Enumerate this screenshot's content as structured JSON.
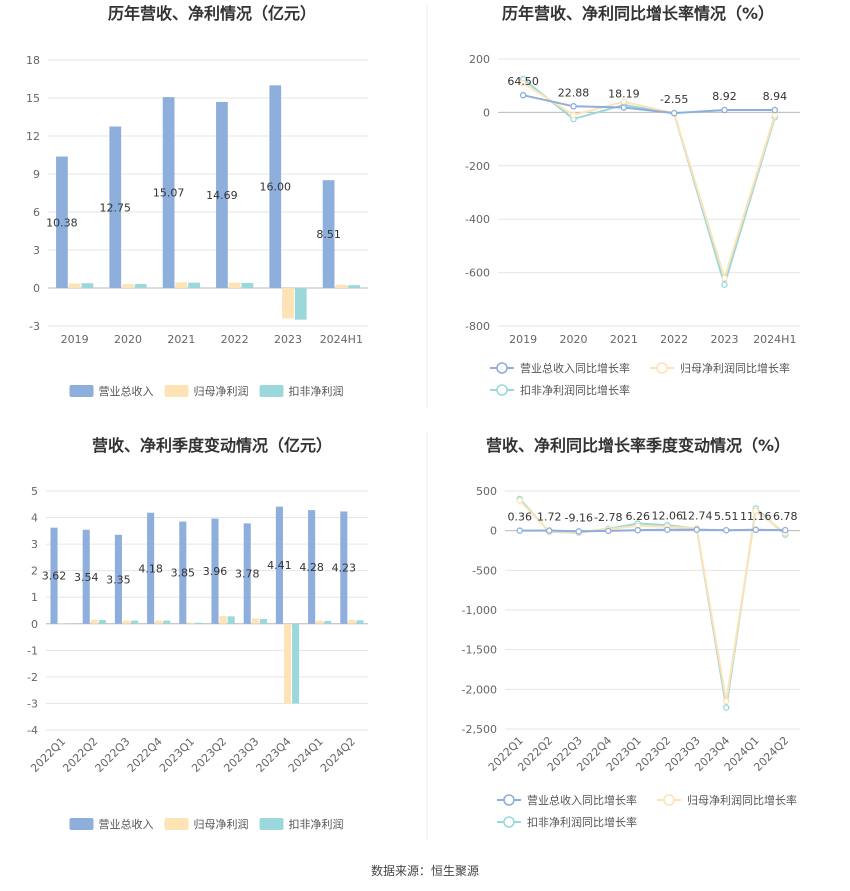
{
  "source": "数据来源：恒生聚源",
  "colors": {
    "revenue": "#8eaedc",
    "parent": "#fde3b5",
    "deducted": "#9ad8dc",
    "revLine": "#8eaedc",
    "parentLine": "#fde3b5",
    "dedLine": "#9ad8dc",
    "grid": "#e6e6e6",
    "axis": "#bbbbbb",
    "divider": "#eeeeee"
  },
  "chart_data": [
    {
      "type": "bar",
      "title": "历年营收、净利情况（亿元）",
      "categories": [
        "2019",
        "2020",
        "2021",
        "2022",
        "2023",
        "2024H1"
      ],
      "ylim": [
        -3,
        18
      ],
      "yticks": [
        -3,
        0,
        3,
        6,
        9,
        12,
        15,
        18
      ],
      "series": [
        {
          "name": "营业总收入",
          "values": [
            10.38,
            12.75,
            15.07,
            14.69,
            16.0,
            8.51
          ],
          "labels": [
            "10.38",
            "12.75",
            "15.07",
            "14.69",
            "16.00",
            "8.51"
          ]
        },
        {
          "name": "归母净利润",
          "values": [
            0.35,
            0.3,
            0.45,
            0.42,
            -2.4,
            0.25
          ]
        },
        {
          "name": "扣非净利润",
          "values": [
            0.38,
            0.32,
            0.42,
            0.4,
            -2.5,
            0.22
          ]
        }
      ],
      "grid": true,
      "legend": "bottom"
    },
    {
      "type": "line",
      "title": "历年营收、净利同比增长率情况（%）",
      "categories": [
        "2019",
        "2020",
        "2021",
        "2022",
        "2023",
        "2024H1"
      ],
      "ylim": [
        -800,
        200
      ],
      "yticks": [
        -800,
        -600,
        -400,
        -200,
        0,
        200
      ],
      "series": [
        {
          "name": "营业总收入同比增长率",
          "values": [
            64.5,
            22.88,
            18.19,
            -2.55,
            8.92,
            8.94
          ],
          "labels": [
            "64.50",
            "22.88",
            "18.19",
            "-2.55",
            "8.92",
            "8.94"
          ]
        },
        {
          "name": "归母净利润同比增长率",
          "values": [
            110,
            -10,
            40,
            -3,
            -620,
            -10
          ]
        },
        {
          "name": "扣非净利润同比增长率",
          "values": [
            125,
            -25,
            28,
            -4,
            -645,
            -18
          ]
        }
      ],
      "grid": true,
      "legend": "bottom"
    },
    {
      "type": "bar",
      "title": "营收、净利季度变动情况（亿元）",
      "categories": [
        "2022Q1",
        "2022Q2",
        "2022Q3",
        "2022Q4",
        "2023Q1",
        "2023Q2",
        "2023Q3",
        "2023Q4",
        "2024Q1",
        "2024Q2"
      ],
      "ylim": [
        -4,
        5
      ],
      "yticks": [
        -4,
        -3,
        -2,
        -1,
        0,
        1,
        2,
        3,
        4,
        5
      ],
      "series": [
        {
          "name": "营业总收入",
          "values": [
            3.62,
            3.54,
            3.35,
            4.18,
            3.85,
            3.96,
            3.78,
            4.41,
            4.28,
            4.23
          ],
          "labels": [
            "3.62",
            "3.54",
            "3.35",
            "4.18",
            "3.85",
            "3.96",
            "3.78",
            "4.41",
            "4.28",
            "4.23"
          ]
        },
        {
          "name": "归母净利润",
          "values": [
            0.02,
            0.15,
            0.12,
            0.12,
            0.05,
            0.3,
            0.2,
            -3.0,
            0.12,
            0.15
          ]
        },
        {
          "name": "扣非净利润",
          "values": [
            0.01,
            0.14,
            0.12,
            0.12,
            0.04,
            0.28,
            0.18,
            -3.0,
            0.11,
            0.13
          ]
        }
      ],
      "grid": true,
      "legend": "bottom"
    },
    {
      "type": "line",
      "title": "营收、净利同比增长率季度变动情况（%）",
      "categories": [
        "2022Q1",
        "2022Q2",
        "2022Q3",
        "2022Q4",
        "2023Q1",
        "2023Q2",
        "2023Q3",
        "2023Q4",
        "2024Q1",
        "2024Q2"
      ],
      "ylim": [
        -2500,
        500
      ],
      "yticks": [
        -2500,
        -2000,
        -1500,
        -1000,
        -500,
        0,
        500
      ],
      "ytickLabels": [
        "-2,500",
        "-2,000",
        "-1,500",
        "-1,000",
        "-500",
        "0",
        "500"
      ],
      "series": [
        {
          "name": "营业总收入同比增长率",
          "values": [
            0.36,
            1.72,
            -9.16,
            -2.78,
            6.26,
            12.06,
            12.74,
            5.51,
            11.16,
            6.78
          ],
          "labels": [
            "0.36",
            "1.72",
            "-9.16",
            "-2.78",
            "6.26",
            "12.06",
            "12.74",
            "5.51",
            "11.16",
            "6.78"
          ]
        },
        {
          "name": "归母净利润同比增长率",
          "values": [
            380,
            -10,
            -20,
            20,
            60,
            50,
            30,
            -2150,
            250,
            -30
          ]
        },
        {
          "name": "扣非净利润同比增长率",
          "values": [
            400,
            -15,
            -25,
            25,
            90,
            70,
            25,
            -2230,
            280,
            -50
          ]
        }
      ],
      "grid": true,
      "legend": "bottom"
    }
  ]
}
